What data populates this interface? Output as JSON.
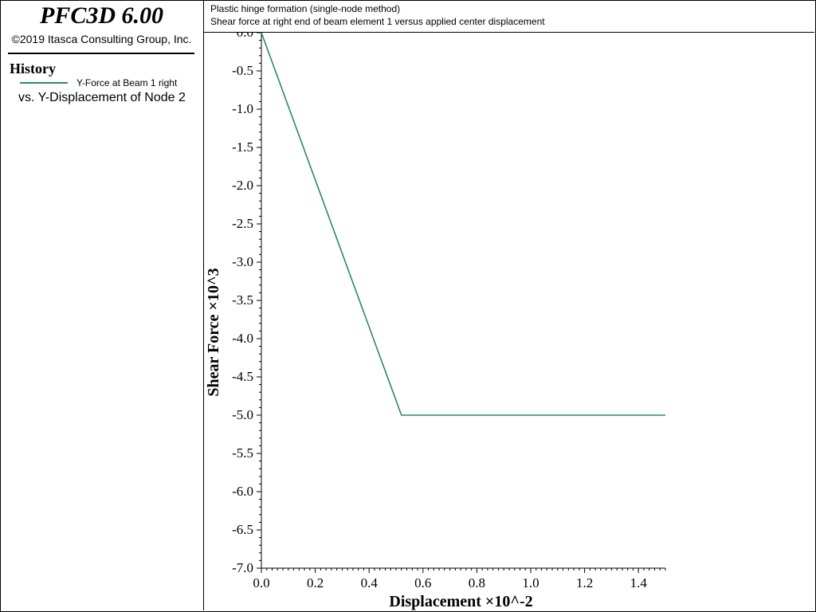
{
  "sidebar": {
    "app_title": "PFC3D 6.00",
    "copyright": "©2019 Itasca Consulting Group, Inc.",
    "history_heading": "History",
    "legend": {
      "series_label": "Y-Force at Beam 1 right",
      "vs_label": "vs. Y-Displacement of Node 2",
      "color": "#2e8b57"
    }
  },
  "header": {
    "line1": "Plastic hinge formation (single-node method)",
    "line2": "Shear force at right end of beam element 1 versus applied center displacement"
  },
  "chart_data": {
    "type": "line",
    "title": "",
    "xlabel": "Displacement ×10^-2",
    "ylabel": "Shear Force ×10^3",
    "xlim": [
      0.0,
      1.5
    ],
    "ylim": [
      -7.0,
      0.0
    ],
    "x_ticks": [
      "0.0",
      "0.2",
      "0.4",
      "0.6",
      "0.8",
      "1.0",
      "1.2",
      "1.4"
    ],
    "y_ticks": [
      "0.0",
      "-0.5",
      "-1.0",
      "-1.5",
      "-2.0",
      "-2.5",
      "-3.0",
      "-3.5",
      "-4.0",
      "-4.5",
      "-5.0",
      "-5.5",
      "-6.0",
      "-6.5",
      "-7.0"
    ],
    "grid": false,
    "series": [
      {
        "name": "Y-Force at Beam 1 right",
        "color": "#2e8b57",
        "x": [
          0.0,
          0.52,
          1.5
        ],
        "y": [
          0.0,
          -5.0,
          -5.0
        ]
      }
    ]
  }
}
